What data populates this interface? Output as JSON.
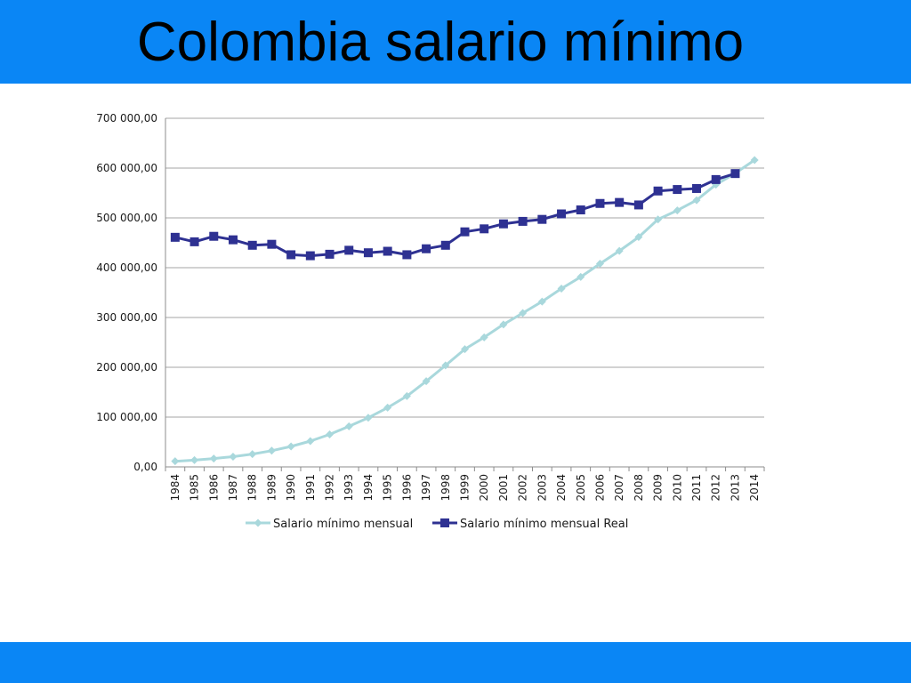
{
  "slide": {
    "title": "Colombia salario mínimo",
    "band_color": "#0a86f5"
  },
  "chart_data": {
    "type": "line",
    "title": "",
    "xlabel": "",
    "ylabel": "",
    "categories": [
      "1984",
      "1985",
      "1986",
      "1987",
      "1988",
      "1989",
      "1990",
      "1991",
      "1992",
      "1993",
      "1994",
      "1995",
      "1996",
      "1997",
      "1998",
      "1999",
      "2000",
      "2001",
      "2002",
      "2003",
      "2004",
      "2005",
      "2006",
      "2007",
      "2008",
      "2009",
      "2010",
      "2011",
      "2012",
      "2013",
      "2014"
    ],
    "ylim": [
      0,
      700000
    ],
    "yticks": [
      0,
      100000,
      200000,
      300000,
      400000,
      500000,
      600000,
      700000
    ],
    "ytick_labels": [
      "0,00",
      "100 000,00",
      "200 000,00",
      "300 000,00",
      "400 000,00",
      "500 000,00",
      "600 000,00",
      "700 000,00"
    ],
    "grid": true,
    "legend_position": "bottom",
    "series": [
      {
        "name": "Salario mínimo mensual",
        "color": "#a9d8dc",
        "marker": "diamond",
        "values": [
          11298,
          13558,
          16811,
          20510,
          25637,
          32557,
          41025,
          51720,
          65190,
          81510,
          98700,
          118934,
          142125,
          172005,
          203826,
          236460,
          260100,
          286000,
          309000,
          332000,
          358000,
          381500,
          408000,
          433700,
          461500,
          496900,
          515000,
          535600,
          566700,
          589500,
          616000
        ]
      },
      {
        "name": "Salario mínimo mensual Real",
        "color": "#2e3192",
        "marker": "square",
        "values": [
          461000,
          452000,
          463000,
          456000,
          445000,
          447000,
          426000,
          424000,
          427000,
          435000,
          430000,
          433000,
          426000,
          438000,
          445000,
          472000,
          478000,
          488000,
          493000,
          497000,
          508000,
          516000,
          529000,
          531000,
          526000,
          554000,
          557000,
          559000,
          577000,
          589000,
          null
        ]
      }
    ]
  }
}
